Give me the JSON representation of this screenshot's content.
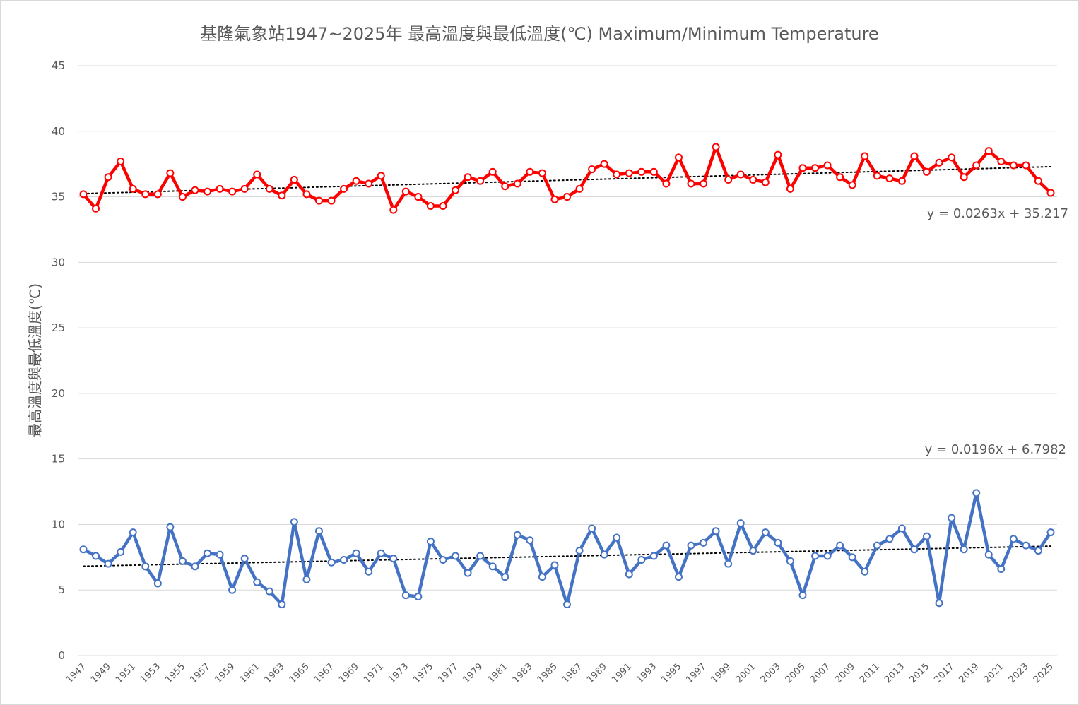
{
  "chart_data": {
    "type": "line",
    "title": "基隆氣象站1947~2025年 最高溫度與最低溫度(℃) Maximum/Minimum Temperature",
    "xlabel": "",
    "ylabel": "最高溫度與最低溫度(℃)",
    "ylim": [
      0,
      45
    ],
    "yticks": [
      0,
      5,
      10,
      15,
      20,
      25,
      30,
      35,
      40,
      45
    ],
    "grid": true,
    "x_start": 1947,
    "x_end": 2025,
    "x_tick_labels": [
      "1947",
      "1949",
      "1951",
      "1953",
      "1955",
      "1957",
      "1959",
      "1961",
      "1963",
      "1965",
      "1967",
      "1969",
      "1971",
      "1973",
      "1975",
      "1977",
      "1979",
      "1981",
      "1983",
      "1985",
      "1987",
      "1989",
      "1991",
      "1993",
      "1995",
      "1997",
      "1999",
      "2001",
      "2003",
      "2005",
      "2007",
      "2009",
      "2011",
      "2013",
      "2015",
      "2017",
      "2019",
      "2021",
      "2023",
      "2025"
    ],
    "series": [
      {
        "name": "Maximum Temperature",
        "color": "#ff0000",
        "values": [
          35.2,
          34.1,
          36.5,
          37.7,
          35.6,
          35.2,
          35.2,
          36.8,
          35.0,
          35.5,
          35.4,
          35.6,
          35.4,
          35.6,
          36.7,
          35.6,
          35.1,
          36.3,
          35.2,
          34.7,
          34.7,
          35.6,
          36.2,
          36.0,
          36.6,
          34.0,
          35.4,
          35.0,
          34.3,
          34.3,
          35.5,
          36.5,
          36.2,
          36.9,
          35.8,
          36.0,
          36.9,
          36.8,
          34.8,
          35.0,
          35.6,
          37.1,
          37.5,
          36.7,
          36.8,
          36.9,
          36.9,
          36.0,
          38.0,
          36.0,
          36.0,
          38.8,
          36.3,
          36.7,
          36.3,
          36.1,
          38.2,
          35.6,
          37.2,
          37.2,
          37.4,
          36.5,
          35.9,
          38.1,
          36.6,
          36.4,
          36.2,
          38.1,
          36.9,
          37.6,
          38.0,
          36.5,
          37.4,
          38.5,
          37.7,
          37.4,
          37.4,
          36.2,
          35.3
        ],
        "trendline": {
          "slope": 0.0263,
          "intercept": 35.217,
          "label": "y = 0.0263x + 35.217"
        }
      },
      {
        "name": "Minimum Temperature",
        "color": "#4472c4",
        "values": [
          8.1,
          7.6,
          7.0,
          7.9,
          9.4,
          6.8,
          5.5,
          9.8,
          7.2,
          6.8,
          7.8,
          7.7,
          5.0,
          7.4,
          5.6,
          4.9,
          3.9,
          10.2,
          5.8,
          9.5,
          7.1,
          7.3,
          7.8,
          6.4,
          7.8,
          7.4,
          4.6,
          4.5,
          8.7,
          7.3,
          7.6,
          6.3,
          7.6,
          6.8,
          6.0,
          9.2,
          8.8,
          6.0,
          6.9,
          3.9,
          8.0,
          9.7,
          7.7,
          9.0,
          6.2,
          7.3,
          7.6,
          8.4,
          6.0,
          8.4,
          8.6,
          9.5,
          7.0,
          10.1,
          8.0,
          9.4,
          8.6,
          7.2,
          4.6,
          7.6,
          7.6,
          8.4,
          7.5,
          6.4,
          8.4,
          8.9,
          9.7,
          8.1,
          9.1,
          4.0,
          10.5,
          8.1,
          12.4,
          7.7,
          6.6,
          8.9,
          8.4,
          8.0,
          9.4
        ],
        "trendline": {
          "slope": 0.0196,
          "intercept": 6.7982,
          "label": "y = 0.0196x + 6.7982"
        }
      }
    ]
  }
}
